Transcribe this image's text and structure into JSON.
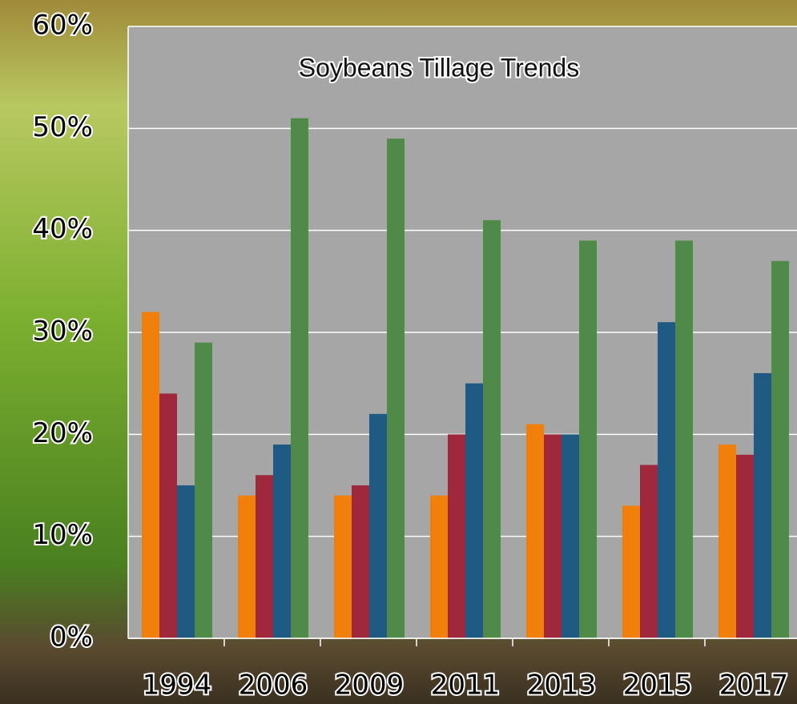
{
  "chart_data": {
    "type": "bar",
    "title": "Soybeans Tillage Trends",
    "categories": [
      "1994",
      "2006",
      "2009",
      "2011",
      "2013",
      "2015",
      "2017"
    ],
    "series": [
      {
        "color": "#f0800a",
        "values": [
          32,
          14,
          14,
          14,
          21,
          13,
          19
        ]
      },
      {
        "color": "#a0283c",
        "values": [
          24,
          16,
          15,
          20,
          20,
          17,
          18
        ]
      },
      {
        "color": "#1f5a82",
        "values": [
          15,
          19,
          22,
          25,
          20,
          31,
          26
        ]
      },
      {
        "color": "#4f8a48",
        "values": [
          29,
          51,
          49,
          41,
          39,
          39,
          37
        ]
      }
    ],
    "ylim": [
      0,
      60
    ],
    "yticks": [
      {
        "value": 0,
        "label": "0%"
      },
      {
        "value": 10,
        "label": "10%"
      },
      {
        "value": 20,
        "label": "20%"
      },
      {
        "value": 30,
        "label": "30%"
      },
      {
        "value": 40,
        "label": "40%"
      },
      {
        "value": 50,
        "label": "50%"
      },
      {
        "value": 60,
        "label": "60%"
      }
    ],
    "grid": true
  }
}
